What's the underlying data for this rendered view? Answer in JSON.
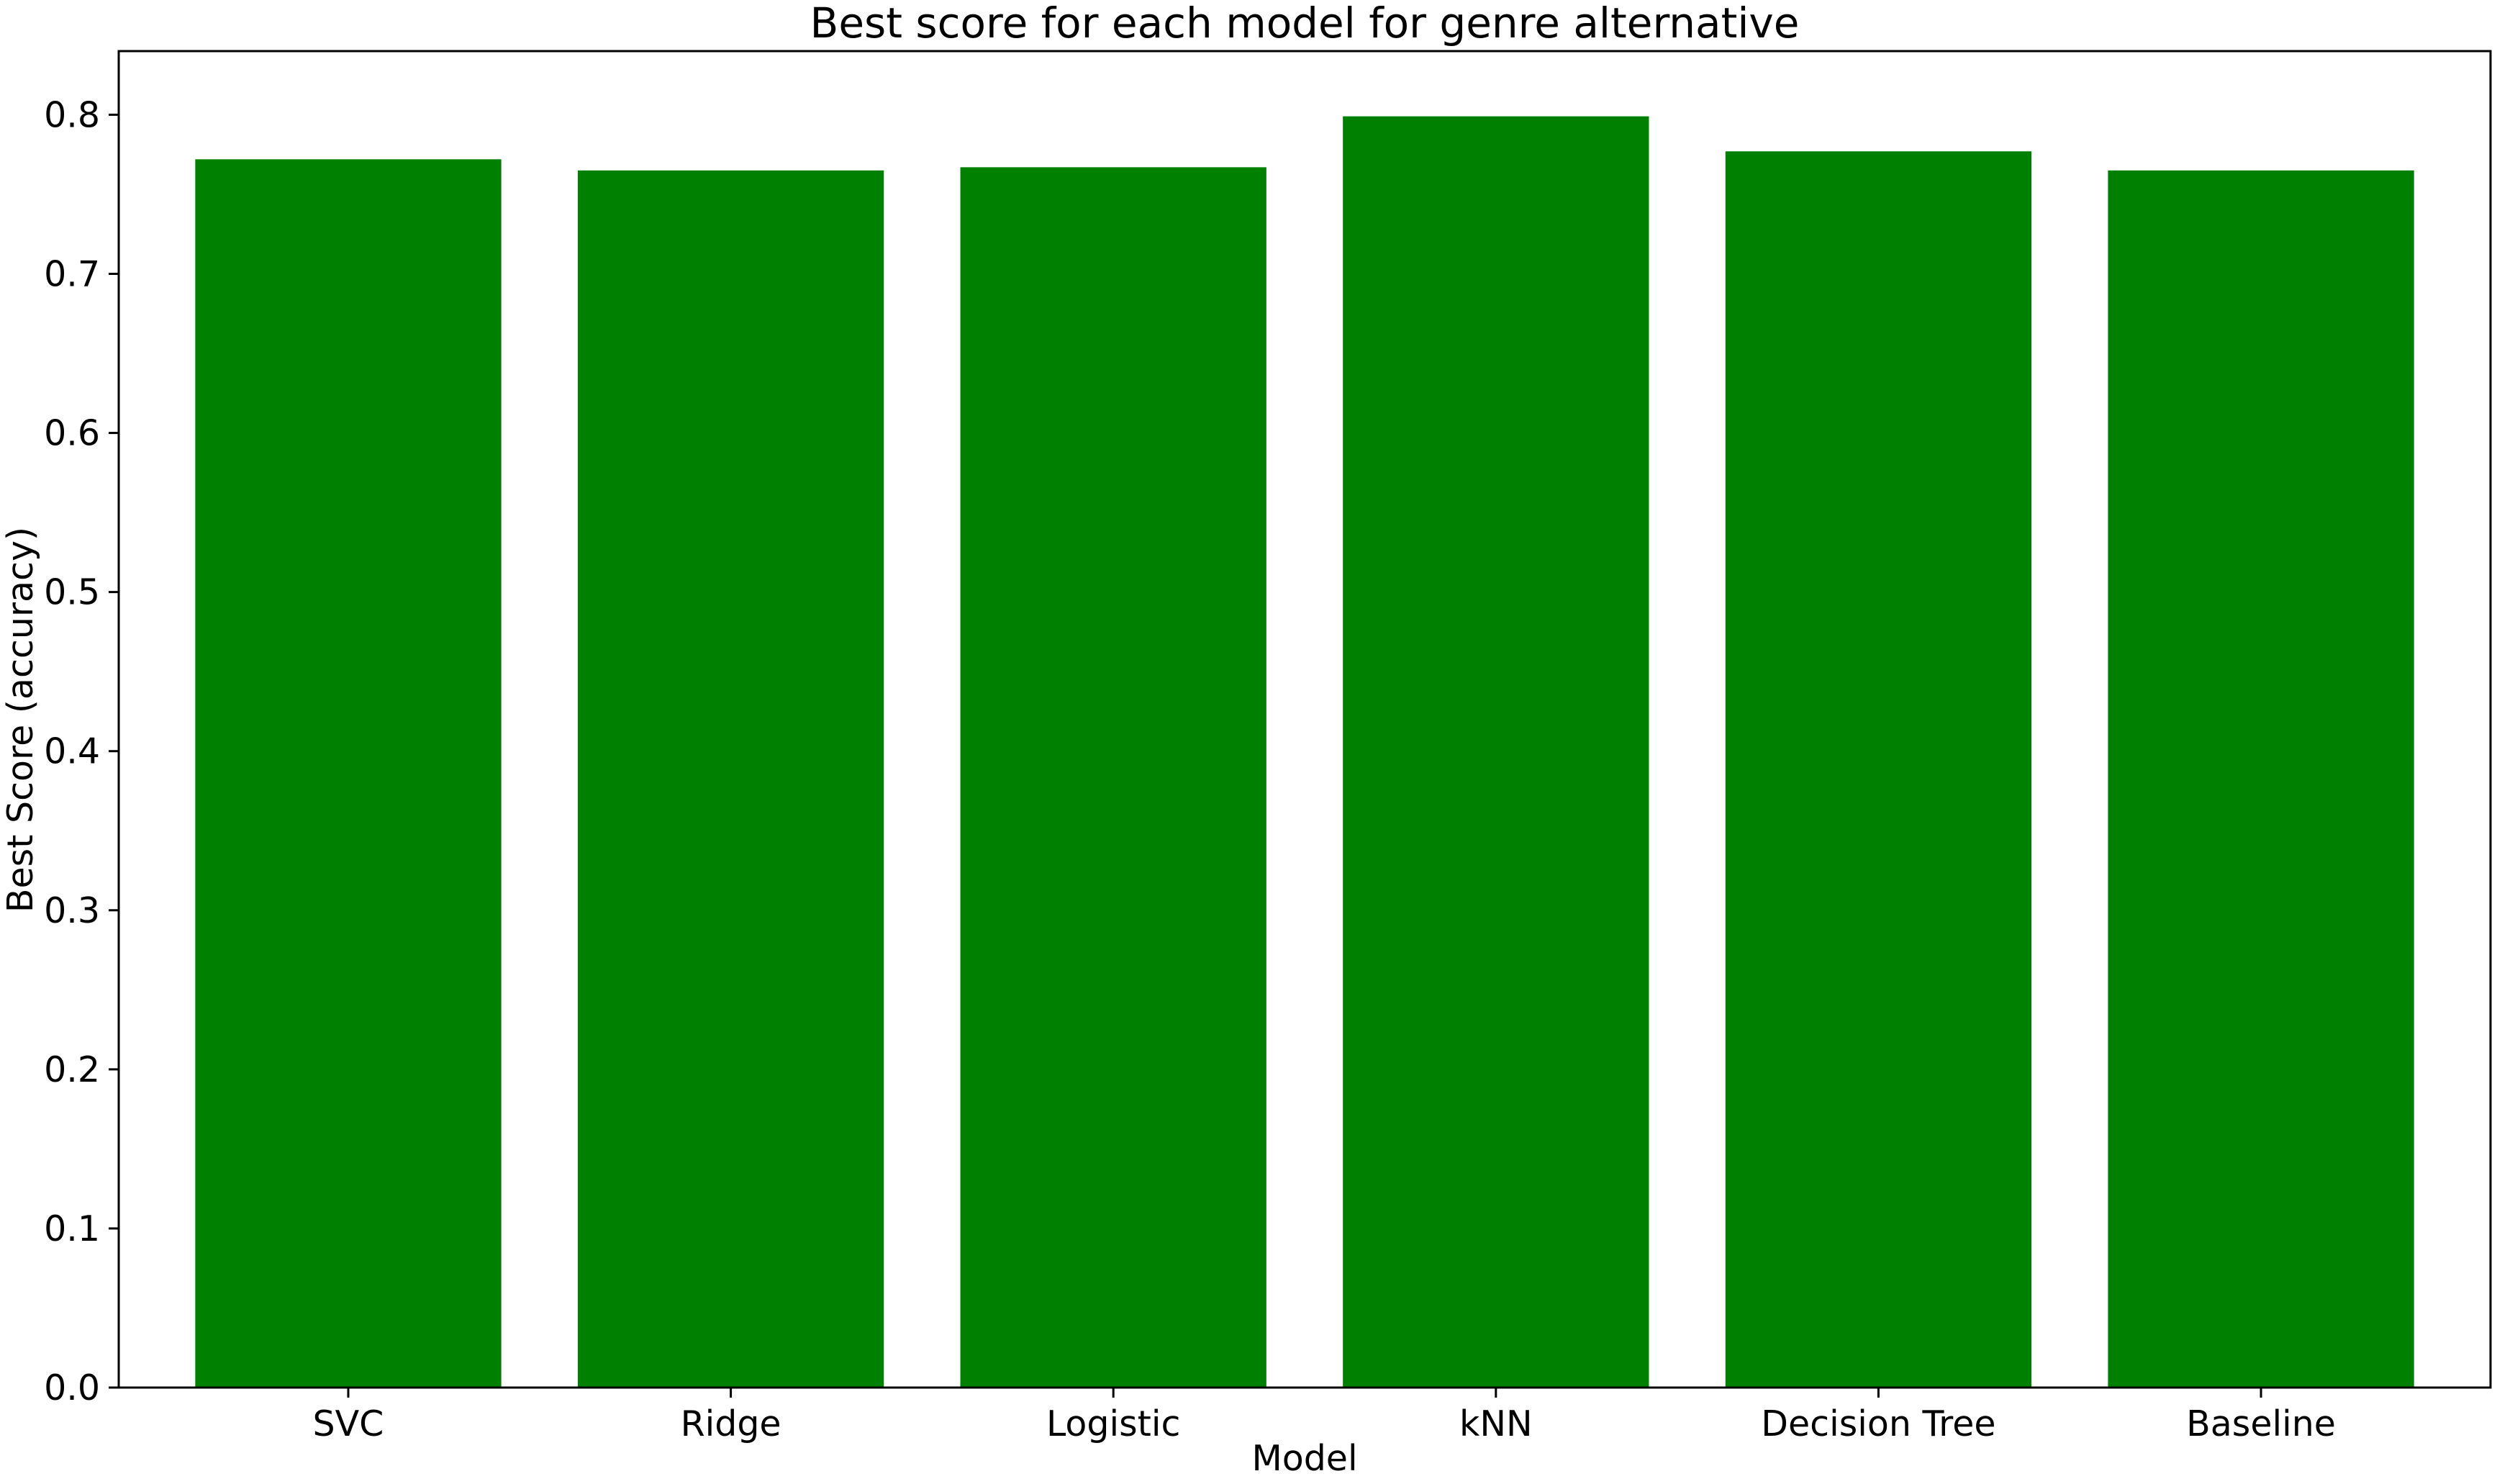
{
  "chart_data": {
    "type": "bar",
    "title": "Best score for each model for genre alternative",
    "xlabel": "Model",
    "ylabel": "Best Score (accuracy)",
    "categories": [
      "SVC",
      "Ridge",
      "Logistic",
      "kNN",
      "Decision Tree",
      "Baseline"
    ],
    "values": [
      0.772,
      0.765,
      0.767,
      0.799,
      0.777,
      0.765
    ],
    "ylim": [
      0,
      0.84
    ],
    "yticks": [
      0.0,
      0.1,
      0.2,
      0.3,
      0.4,
      0.5,
      0.6,
      0.7,
      0.8
    ],
    "ytick_labels": [
      "0.0",
      "0.1",
      "0.2",
      "0.3",
      "0.4",
      "0.5",
      "0.6",
      "0.7",
      "0.8"
    ],
    "bar_color": "#008000",
    "grid": false,
    "legend": "none"
  }
}
